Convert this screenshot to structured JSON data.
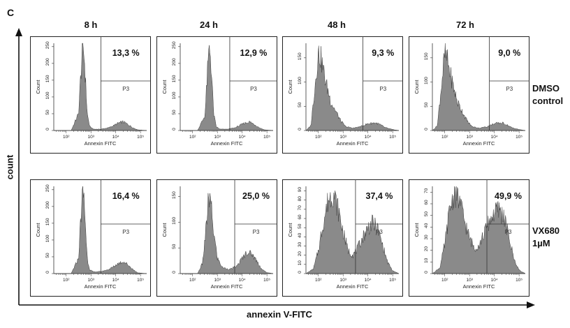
{
  "panel_letter": "C",
  "columns": [
    "8 h",
    "24 h",
    "48 h",
    "72 h"
  ],
  "rows": [
    {
      "label_lines": [
        "DMSO",
        "control"
      ]
    },
    {
      "label_lines": [
        "VX680",
        "1µM"
      ]
    }
  ],
  "y_axis_title": "count",
  "x_axis_title": "annexin V-FITC",
  "panel_y_label": "Count",
  "panel_x_label": "Annexin FITC",
  "gate_label": "P3",
  "x_tick_labels": [
    "10²",
    "10³",
    "10⁴",
    "10⁵"
  ],
  "colors": {
    "histogram_fill": "#8a8a8a",
    "histogram_stroke": "#3a3a3a",
    "frame": "#222222"
  },
  "chart_data": [
    {
      "type": "area",
      "row": "DMSO control",
      "time": "8 h",
      "percent_label": "13,3 %",
      "y_ticks": [
        0,
        50,
        100,
        150,
        200,
        250
      ],
      "ylim": [
        0,
        260
      ],
      "xlim_log10": [
        1.5,
        5.25
      ],
      "gate_start_log10": 3.4,
      "x_log10": [
        1.5,
        2.2,
        2.5,
        2.6,
        2.68,
        2.72,
        2.78,
        2.85,
        2.95,
        3.1,
        3.4,
        3.7,
        3.9,
        4.1,
        4.3,
        4.5,
        4.7,
        4.9,
        5.25
      ],
      "y": [
        0,
        0,
        50,
        180,
        250,
        230,
        150,
        50,
        12,
        4,
        4,
        8,
        14,
        22,
        26,
        18,
        8,
        2,
        0
      ]
    },
    {
      "type": "area",
      "row": "DMSO control",
      "time": "24 h",
      "percent_label": "12,9 %",
      "y_ticks": [
        0,
        50,
        100,
        150,
        200,
        250
      ],
      "ylim": [
        0,
        260
      ],
      "xlim_log10": [
        1.5,
        5.25
      ],
      "gate_start_log10": 3.5,
      "x_log10": [
        1.5,
        2.2,
        2.5,
        2.6,
        2.68,
        2.72,
        2.78,
        2.85,
        2.95,
        3.1,
        3.4,
        3.7,
        3.9,
        4.1,
        4.3,
        4.5,
        4.7,
        4.9,
        5.25
      ],
      "y": [
        0,
        0,
        45,
        175,
        250,
        225,
        150,
        50,
        12,
        4,
        4,
        8,
        15,
        22,
        26,
        18,
        8,
        2,
        0
      ]
    },
    {
      "type": "area",
      "row": "DMSO control",
      "time": "48 h",
      "percent_label": "9,3 %",
      "y_ticks": [
        0,
        50,
        100,
        150
      ],
      "ylim": [
        0,
        180
      ],
      "xlim_log10": [
        1.5,
        5.25
      ],
      "gate_start_log10": 3.8,
      "x_log10": [
        1.5,
        1.7,
        1.9,
        2.0,
        2.1,
        2.3,
        2.5,
        2.7,
        2.9,
        3.1,
        3.4,
        3.7,
        4.0,
        4.3,
        4.5,
        4.7,
        5.0,
        5.25
      ],
      "y": [
        0,
        10,
        110,
        160,
        150,
        100,
        60,
        40,
        20,
        8,
        5,
        8,
        14,
        16,
        12,
        6,
        2,
        0
      ]
    },
    {
      "type": "area",
      "row": "DMSO control",
      "time": "72 h",
      "percent_label": "9,0 %",
      "y_ticks": [
        0,
        50,
        100,
        150
      ],
      "ylim": [
        0,
        180
      ],
      "xlim_log10": [
        1.5,
        5.25
      ],
      "gate_start_log10": 3.8,
      "x_log10": [
        1.5,
        1.7,
        1.9,
        2.0,
        2.1,
        2.3,
        2.5,
        2.7,
        2.9,
        3.1,
        3.4,
        3.7,
        4.0,
        4.3,
        4.5,
        4.7,
        5.0,
        5.25
      ],
      "y": [
        0,
        10,
        110,
        158,
        145,
        100,
        60,
        40,
        20,
        8,
        5,
        8,
        14,
        16,
        12,
        6,
        2,
        0
      ]
    },
    {
      "type": "area",
      "row": "VX680 1µM",
      "time": "8 h",
      "percent_label": "16,4 %",
      "y_ticks": [
        0,
        50,
        100,
        150,
        200,
        250
      ],
      "ylim": [
        0,
        260
      ],
      "xlim_log10": [
        1.5,
        5.25
      ],
      "gate_start_log10": 3.4,
      "x_log10": [
        1.5,
        2.2,
        2.5,
        2.6,
        2.68,
        2.72,
        2.78,
        2.85,
        2.95,
        3.1,
        3.4,
        3.7,
        3.9,
        4.1,
        4.3,
        4.5,
        4.7,
        4.9,
        5.25
      ],
      "y": [
        0,
        0,
        45,
        180,
        250,
        220,
        145,
        45,
        12,
        5,
        6,
        12,
        20,
        30,
        36,
        26,
        12,
        2,
        0
      ]
    },
    {
      "type": "area",
      "row": "VX680 1µM",
      "time": "24 h",
      "percent_label": "25,0 %",
      "y_ticks": [
        0,
        50,
        100,
        150
      ],
      "ylim": [
        0,
        170
      ],
      "xlim_log10": [
        1.5,
        5.25
      ],
      "gate_start_log10": 3.7,
      "x_log10": [
        1.5,
        2.2,
        2.4,
        2.55,
        2.65,
        2.75,
        2.85,
        3.0,
        3.2,
        3.5,
        3.8,
        4.0,
        4.2,
        4.4,
        4.6,
        4.8,
        5.0,
        5.25
      ],
      "y": [
        0,
        0,
        20,
        90,
        150,
        130,
        80,
        30,
        12,
        8,
        15,
        30,
        42,
        38,
        24,
        8,
        2,
        0
      ]
    },
    {
      "type": "area",
      "row": "VX680 1µM",
      "time": "48 h",
      "percent_label": "37,4 %",
      "y_ticks": [
        0,
        10,
        20,
        30,
        40,
        50,
        60,
        70,
        80,
        90
      ],
      "ylim": [
        0,
        95
      ],
      "xlim_log10": [
        1.5,
        5.25
      ],
      "gate_start_log10": 3.5,
      "x_log10": [
        1.5,
        1.8,
        2.0,
        2.2,
        2.4,
        2.6,
        2.8,
        3.0,
        3.2,
        3.4,
        3.6,
        3.8,
        4.0,
        4.2,
        4.4,
        4.6,
        4.8,
        5.0,
        5.25
      ],
      "y": [
        0,
        5,
        25,
        55,
        80,
        88,
        70,
        45,
        25,
        20,
        28,
        40,
        50,
        55,
        48,
        30,
        12,
        3,
        0
      ]
    },
    {
      "type": "area",
      "row": "VX680 1µM",
      "time": "72 h",
      "percent_label": "49,9 %",
      "y_ticks": [
        0,
        10,
        20,
        30,
        40,
        50,
        60,
        70
      ],
      "ylim": [
        0,
        75
      ],
      "xlim_log10": [
        1.5,
        5.25
      ],
      "gate_start_log10": 3.7,
      "x_log10": [
        1.5,
        1.8,
        2.0,
        2.2,
        2.4,
        2.6,
        2.8,
        3.0,
        3.2,
        3.4,
        3.6,
        3.8,
        4.0,
        4.2,
        4.4,
        4.6,
        4.8,
        5.0,
        5.25
      ],
      "y": [
        0,
        5,
        25,
        55,
        70,
        62,
        45,
        30,
        22,
        25,
        35,
        45,
        52,
        55,
        48,
        30,
        12,
        3,
        0
      ]
    }
  ]
}
